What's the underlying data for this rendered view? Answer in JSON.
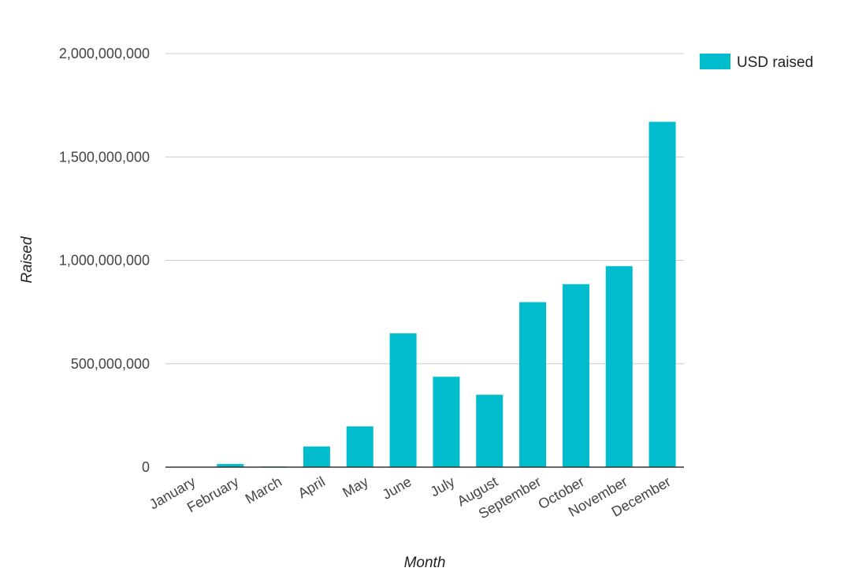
{
  "chart_data": {
    "type": "bar",
    "title": "",
    "xlabel": "Month",
    "ylabel": "Raised",
    "categories": [
      "January",
      "February",
      "March",
      "April",
      "May",
      "June",
      "July",
      "August",
      "September",
      "October",
      "November",
      "December"
    ],
    "series": [
      {
        "name": "USD raised",
        "color": "#00BCCC",
        "values": [
          0,
          15000000,
          3000000,
          100000000,
          197000000,
          647000000,
          437000000,
          350000000,
          798000000,
          885000000,
          972000000,
          1670000000
        ]
      }
    ],
    "ylim": [
      0,
      2000000000
    ],
    "yticks": [
      0,
      500000000,
      1000000000,
      1500000000,
      2000000000
    ],
    "ytick_labels": [
      "0",
      "500,000,000",
      "1,000,000,000",
      "1,500,000,000",
      "2,000,000,000"
    ],
    "grid": true,
    "legend_position": "top-right"
  }
}
